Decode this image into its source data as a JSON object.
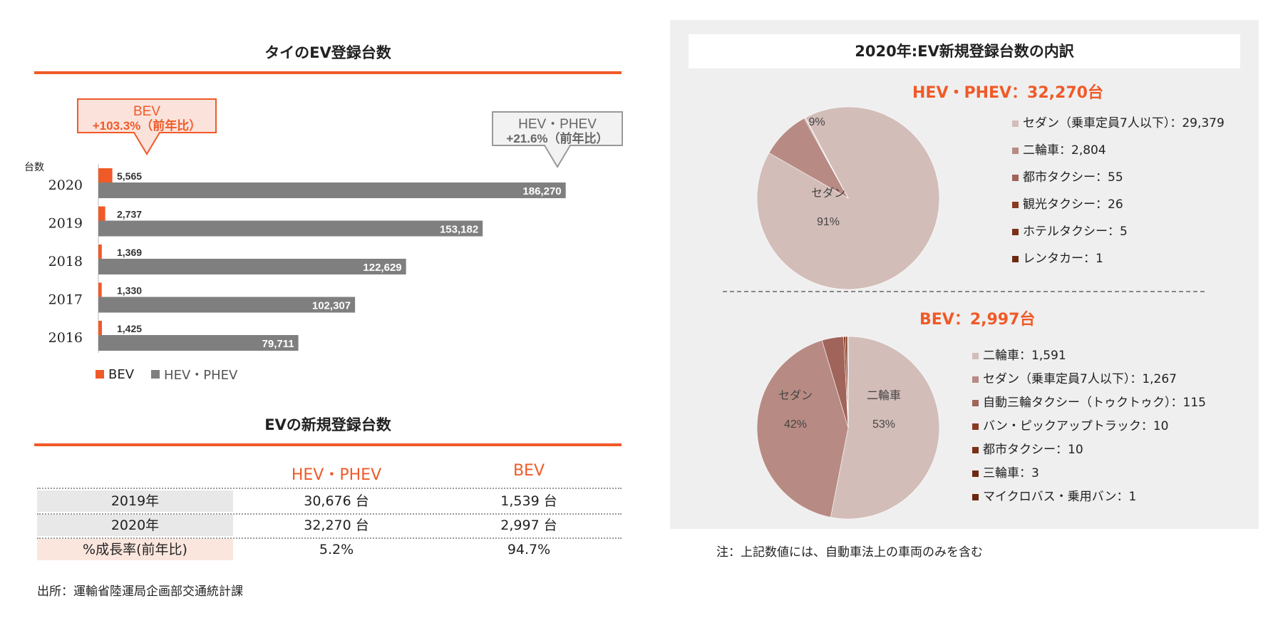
{
  "left_title": "タイのEV登録台数",
  "table_title": "EVの新規登録台数",
  "callouts": {
    "bev_line1": "BEV",
    "bev_line2": "+103.3%（前年比）",
    "hev_line1": "HEV・PHEV",
    "hev_line2": "+21.6%（前年比）"
  },
  "colors": {
    "accent": "#f05a28",
    "bev": "#f05a28",
    "hev": "#7f7f7f"
  },
  "chart_data": [
    {
      "type": "bar",
      "orientation": "horizontal",
      "ylabel": "台数",
      "categories": [
        "2020",
        "2019",
        "2018",
        "2017",
        "2016"
      ],
      "series": [
        {
          "name": "BEV",
          "values": [
            5565,
            2737,
            1369,
            1330,
            1425
          ],
          "labels": [
            "5,565",
            "2,737",
            "1,369",
            "1,330",
            "1,425"
          ]
        },
        {
          "name": "HEV・PHEV",
          "values": [
            186270,
            153182,
            122629,
            102307,
            79711
          ],
          "labels": [
            "186,270",
            "153,182",
            "122,629",
            "102,307",
            "79,711"
          ]
        }
      ],
      "xlim": [
        0,
        200000
      ],
      "legend": "bottom-left"
    },
    {
      "type": "table",
      "columns": [
        "",
        "HEV・PHEV",
        "BEV"
      ],
      "rows": [
        [
          "2019年",
          "30,676 台",
          "1,539 台"
        ],
        [
          "2020年",
          "32,270 台",
          "2,997 台"
        ],
        [
          "%成長率(前年比)",
          "5.2%",
          "94.7%"
        ]
      ]
    },
    {
      "type": "pie",
      "title": "HEV・PHEV：32,270台",
      "slices": [
        {
          "name": "セダン（乗車定員7人以下）",
          "value": 29379,
          "value_label": "29,379"
        },
        {
          "name": "二輪車",
          "value": 2804,
          "value_label": "2,804"
        },
        {
          "name": "都市タクシー",
          "value": 55,
          "value_label": "55"
        },
        {
          "name": "観光タクシー",
          "value": 26,
          "value_label": "26"
        },
        {
          "name": "ホテルタクシー",
          "value": 5,
          "value_label": "5"
        },
        {
          "name": "レンタカー",
          "value": 1,
          "value_label": "1"
        }
      ],
      "slice_labels": [
        {
          "name": "セダン",
          "pct": "91%"
        },
        {
          "name": "",
          "pct": "9%"
        }
      ],
      "legend": "right"
    },
    {
      "type": "pie",
      "title": "BEV：2,997台",
      "slices": [
        {
          "name": "二輪車",
          "value": 1591,
          "value_label": "1,591"
        },
        {
          "name": "セダン（乗車定員7人以下）",
          "value": 1267,
          "value_label": "1,267"
        },
        {
          "name": "自動三輪タクシー（トゥクトゥク）",
          "value": 115,
          "value_label": "115"
        },
        {
          "name": "バン・ピックアップトラック",
          "value": 10,
          "value_label": "10"
        },
        {
          "name": "都市タクシー",
          "value": 10,
          "value_label": "10"
        },
        {
          "name": "三輪車",
          "value": 3,
          "value_label": "3"
        },
        {
          "name": "マイクロバス・乗用バン",
          "value": 1,
          "value_label": "1"
        }
      ],
      "slice_labels": [
        {
          "name": "二輪車",
          "pct": "53%"
        },
        {
          "name": "セダン",
          "pct": "42%"
        }
      ],
      "legend": "right"
    }
  ],
  "pie_title": "2020年:EV新規登録台数の内訳",
  "pie_colors_hev": [
    "#d3bdb9",
    "#b78b83",
    "#a0645a",
    "#8a3a22",
    "#7a3016",
    "#6e2a10"
  ],
  "pie_colors_bev": [
    "#d3bdb9",
    "#b78b83",
    "#a0645a",
    "#8a3a22",
    "#7a3016",
    "#6e2a10",
    "#6a2810"
  ],
  "note": "注：上記数値には、自動車法上の車両のみを含む",
  "source": "出所：運輸省陸運局企画部交通統計課"
}
